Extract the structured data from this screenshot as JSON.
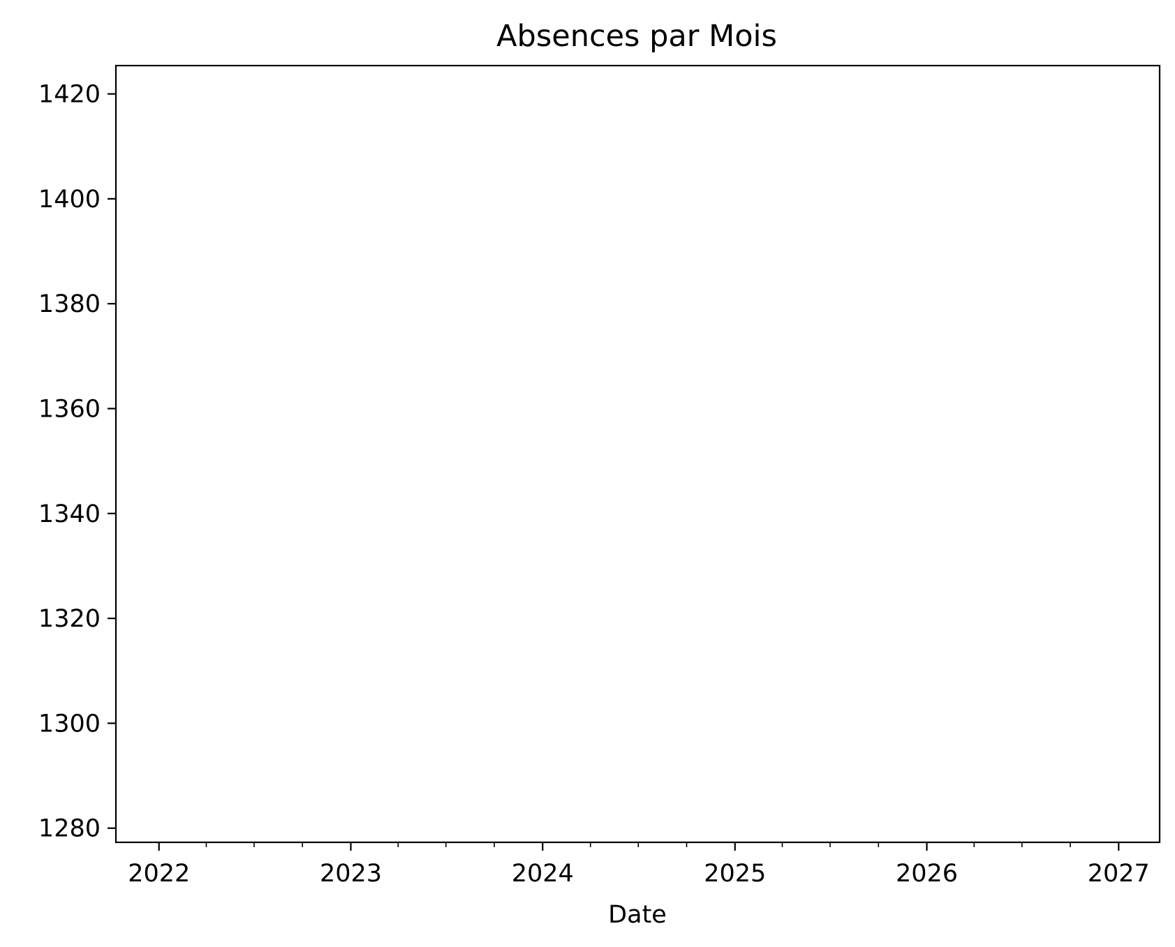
{
  "chart_data": {
    "type": "line",
    "title": "Absences par Mois",
    "xlabel": "Date",
    "ylabel": "",
    "series": [],
    "xlim": [
      "2021-10-11",
      "2027-03-20"
    ],
    "ylim": [
      1277.3,
      1425.4
    ],
    "x_major_ticks": [
      "2022",
      "2023",
      "2024",
      "2025",
      "2026",
      "2027"
    ],
    "x_minor_ticks_per_year": 3,
    "y_ticks": [
      1280,
      1300,
      1320,
      1340,
      1360,
      1380,
      1400,
      1420
    ],
    "grid": false,
    "legend": "none",
    "colors": {
      "axes": "#000000",
      "background": "#ffffff"
    }
  }
}
